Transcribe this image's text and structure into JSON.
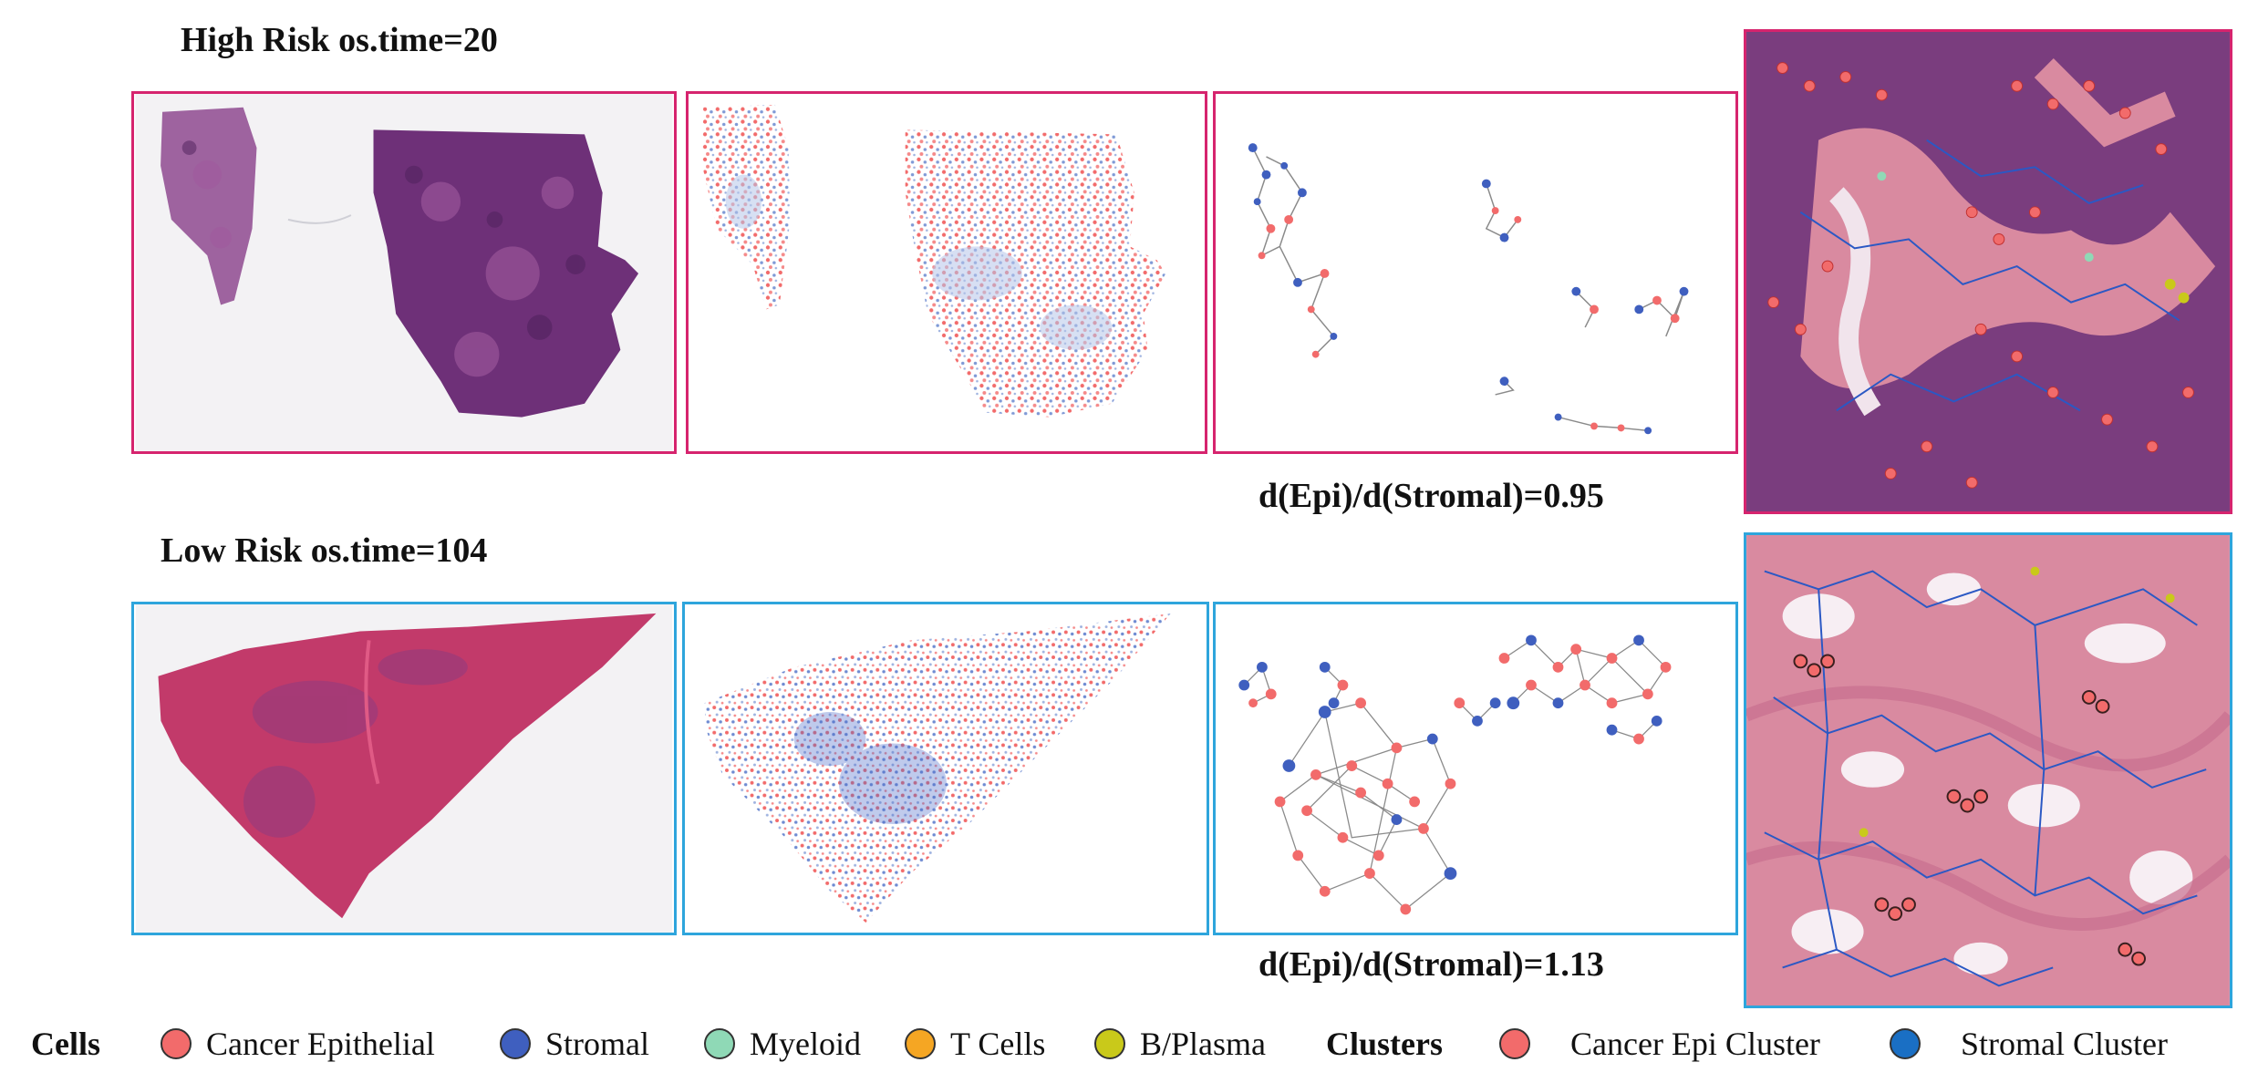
{
  "rows": [
    {
      "title": "High Risk os.time=20",
      "ratio": "d(Epi)/d(Stromal)=0.95",
      "border_color": "#d6246e"
    },
    {
      "title": "Low Risk os.time=104",
      "ratio": "d(Epi)/d(Stromal)=1.13",
      "border_color": "#2ea5dc"
    }
  ],
  "legend": {
    "cells_heading": "Cells",
    "cells": [
      {
        "label": "Cancer Epithelial",
        "color": "#f26b6b"
      },
      {
        "label": "Stromal",
        "color": "#3f5fbf"
      },
      {
        "label": "Myeloid",
        "color": "#8fd9b6"
      },
      {
        "label": "T Cells",
        "color": "#f5a623"
      },
      {
        "label": "B/Plasma",
        "color": "#c9c91a"
      }
    ],
    "clusters_heading": "Clusters",
    "clusters": [
      {
        "label": "Cancer Epi Cluster",
        "color": "#f26b6b"
      },
      {
        "label": "Stromal Cluster",
        "color": "#1a6fc4"
      }
    ]
  },
  "colors": {
    "tissue_high": "#7b3f86",
    "tissue_low": "#c23a6a",
    "stroma_pink": "#d98aa0",
    "edge_gray": "#8a8a8a"
  },
  "icons": [
    "tissue-slide-image",
    "cell-scatter-map",
    "cluster-graph",
    "zoomed-tissue-patch"
  ]
}
